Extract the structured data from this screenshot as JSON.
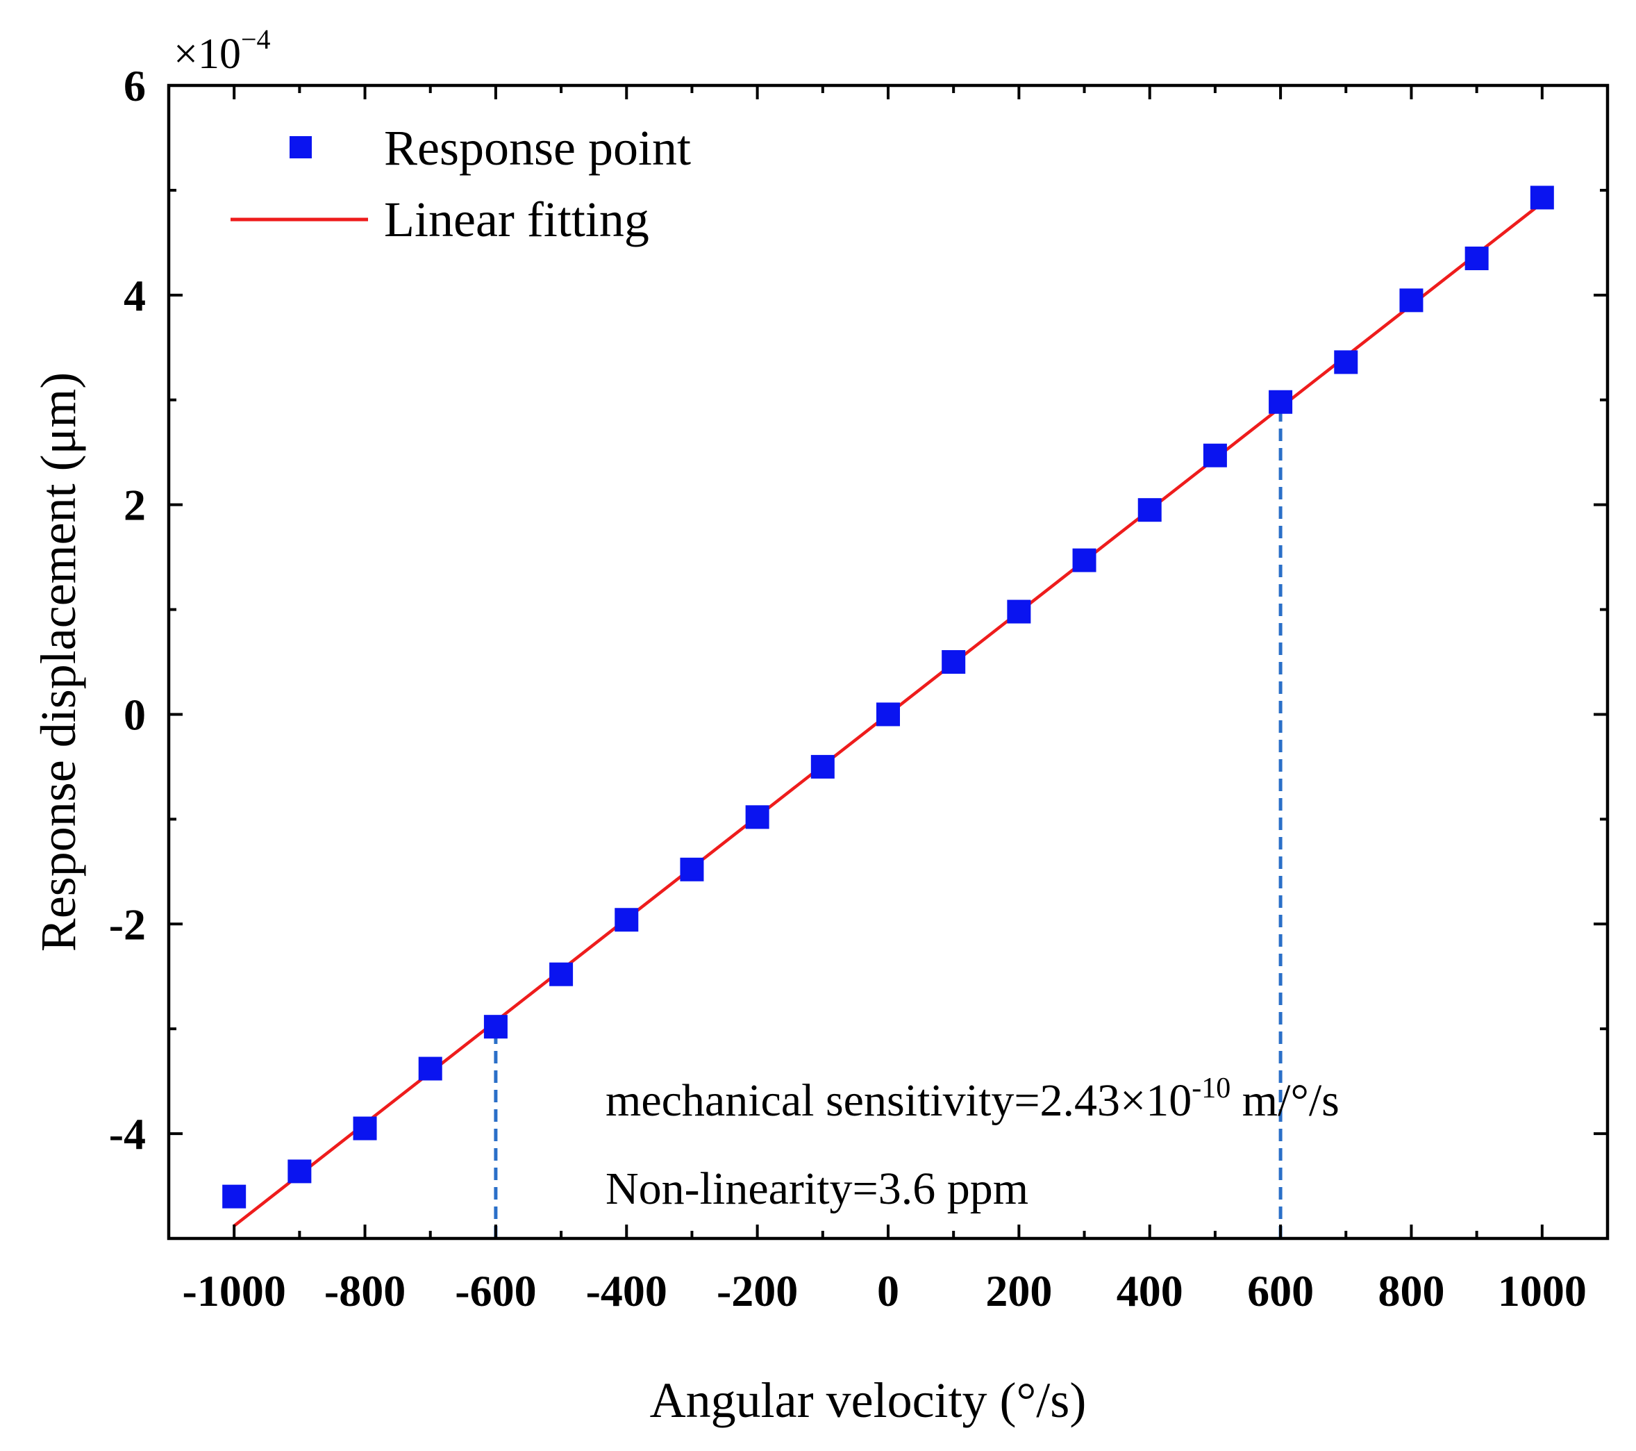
{
  "chart_data": {
    "type": "scatter",
    "xlabel": "Angular velocity (°/s)",
    "ylabel": "Response displacement (μm)",
    "y_multiplier": {
      "base": "×10",
      "exp": "−4"
    },
    "xlim": [
      -1100,
      1100
    ],
    "ylim": [
      -5.0,
      6.0
    ],
    "xticks": [
      -1000,
      -800,
      -600,
      -400,
      -200,
      0,
      200,
      400,
      600,
      800,
      1000
    ],
    "xtick_labels": [
      "-1000",
      "-800",
      "-600",
      "-400",
      "-200",
      "0",
      "200",
      "400",
      "600",
      "800",
      "1000"
    ],
    "yticks": [
      -4,
      -2,
      0,
      2,
      4,
      6
    ],
    "ytick_labels": [
      "-4",
      "-2",
      "0",
      "2",
      "4",
      "6"
    ],
    "grid": false,
    "legend_position": "top-left",
    "series": [
      {
        "name": "Response point",
        "kind": "scatter",
        "marker": "square",
        "color": "#0a14f0",
        "x": [
          -1000,
          -900,
          -800,
          -700,
          -600,
          -500,
          -400,
          -300,
          -200,
          -100,
          0,
          100,
          200,
          300,
          400,
          500,
          600,
          700,
          800,
          900,
          1000
        ],
        "y": [
          -4.6,
          -4.36,
          -3.95,
          -3.38,
          -2.98,
          -2.48,
          -1.96,
          -1.48,
          -0.98,
          -0.5,
          0.0,
          0.5,
          0.98,
          1.47,
          1.95,
          2.47,
          2.98,
          3.36,
          3.95,
          4.35,
          4.93
        ]
      },
      {
        "name": "Linear fitting",
        "kind": "line",
        "color": "#ee1c1c",
        "x": [
          -1000,
          1000
        ],
        "y": [
          -4.88,
          4.88
        ]
      }
    ],
    "reference_lines": [
      {
        "x": -600,
        "y_from": -5.0,
        "y_to": -2.98,
        "color": "#2a6fc8",
        "style": "dashed"
      },
      {
        "x": 600,
        "y_from": -5.0,
        "y_to": 2.98,
        "color": "#2a6fc8",
        "style": "dashed"
      }
    ],
    "annotations": {
      "sensitivity": {
        "prefix": "mechanical sensitivity=2.43×10",
        "exp": "-10",
        "suffix": " m/°/s"
      },
      "nonlinearity": "Non-linearity=3.6 ppm"
    }
  }
}
